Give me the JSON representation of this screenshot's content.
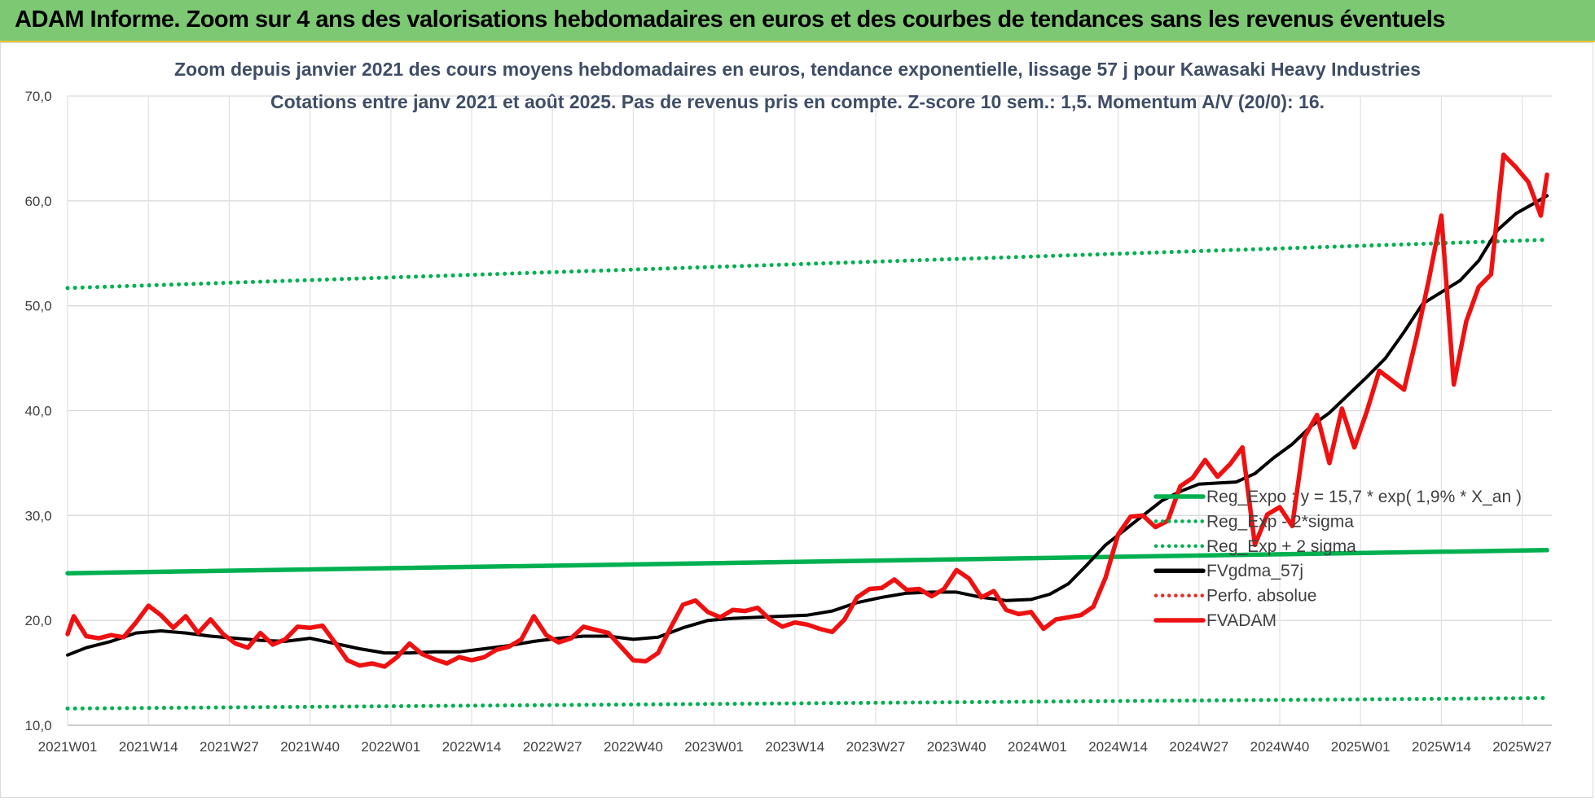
{
  "banner": {
    "title": "ADAM Informe. Zoom sur 4 ans des valorisations hebdomadaires en euros et des courbes de tendances sans les revenus éventuels",
    "color": "#7dc873"
  },
  "chart_data": {
    "type": "line",
    "title": "Zoom depuis janvier 2021 des cours moyens hebdomadaires en euros, tendance exponentielle, lissage 57 j pour Kawasaki Heavy Industries",
    "subtitle": "Cotations entre janv 2021 et août 2025.  Pas de revenus pris en compte. Z-score 10 sem.: 1,5. Momentum A/V (20/0): 16.",
    "xlabel": "",
    "ylabel": "",
    "ylim": [
      10,
      70
    ],
    "yticks": [
      "10,0",
      "20,0",
      "30,0",
      "40,0",
      "50,0",
      "60,0",
      "70,0"
    ],
    "ytick_values": [
      10,
      20,
      30,
      40,
      50,
      60,
      70
    ],
    "xlim": [
      0,
      235
    ],
    "xticks": [
      "2021W01",
      "2021W14",
      "2021W27",
      "2021W40",
      "2022W01",
      "2022W14",
      "2022W27",
      "2022W40",
      "2023W01",
      "2023W14",
      "2023W27",
      "2023W40",
      "2024W01",
      "2024W14",
      "2024W27",
      "2024W40",
      "2025W01",
      "2025W14",
      "2025W27"
    ],
    "xtick_index": [
      0,
      13,
      26,
      39,
      52,
      65,
      78,
      91,
      104,
      117,
      130,
      143,
      156,
      169,
      182,
      195,
      208,
      221,
      234
    ],
    "grid": true,
    "legend_position": "right",
    "series": [
      {
        "name": "Reg_Expo : y = 15,7 * exp( 1,9% *  X_an )",
        "color": "#00b050",
        "style": "solid",
        "x": [
          0,
          238
        ],
        "y": [
          24.5,
          26.7
        ]
      },
      {
        "name": "Reg_Exp - 2*sigma",
        "color": "#00b050",
        "style": "dotted",
        "x": [
          0,
          238
        ],
        "y": [
          11.6,
          12.6
        ]
      },
      {
        "name": "Reg_Exp + 2 sigma",
        "color": "#00b050",
        "style": "dotted",
        "x": [
          0,
          238
        ],
        "y": [
          51.7,
          56.3
        ]
      },
      {
        "name": "FVgdma_57j",
        "color": "#000000",
        "style": "solid",
        "x": [
          0,
          3,
          7,
          11,
          15,
          19,
          23,
          27,
          31,
          35,
          39,
          43,
          47,
          51,
          55,
          59,
          63,
          67,
          71,
          75,
          79,
          83,
          87,
          91,
          95,
          99,
          103,
          107,
          111,
          115,
          119,
          123,
          127,
          131,
          135,
          139,
          143,
          147,
          151,
          155,
          158,
          161,
          164,
          167,
          170,
          173,
          176,
          179,
          182,
          185,
          188,
          191,
          194,
          197,
          200,
          203,
          206,
          209,
          212,
          215,
          218,
          221,
          224,
          227,
          230,
          233,
          236,
          238
        ],
        "y": [
          16.7,
          17.4,
          18.0,
          18.8,
          19.0,
          18.8,
          18.5,
          18.3,
          18.1,
          18.0,
          18.3,
          17.8,
          17.3,
          16.9,
          16.9,
          17.0,
          17.0,
          17.3,
          17.6,
          18.0,
          18.3,
          18.5,
          18.5,
          18.2,
          18.4,
          19.3,
          20.0,
          20.2,
          20.3,
          20.4,
          20.5,
          20.9,
          21.7,
          22.2,
          22.6,
          22.7,
          22.7,
          22.2,
          21.9,
          22.0,
          22.5,
          23.5,
          25.3,
          27.2,
          28.6,
          30.0,
          31.4,
          32.3,
          33.0,
          33.1,
          33.2,
          34.0,
          35.5,
          36.8,
          38.5,
          39.8,
          41.5,
          43.2,
          45.0,
          47.5,
          50.2,
          51.3,
          52.4,
          54.3,
          57.2,
          58.8,
          59.8,
          60.5
        ]
      },
      {
        "name": "Perfo. absolue",
        "color": "#e0302a",
        "style": "dotted",
        "x": [],
        "y": []
      },
      {
        "name": "FVADAM",
        "color": "#ee1111",
        "style": "solid",
        "x": [
          0,
          1,
          3,
          5,
          7,
          9,
          11,
          13,
          15,
          17,
          19,
          21,
          23,
          25,
          27,
          29,
          31,
          33,
          35,
          37,
          39,
          41,
          43,
          45,
          47,
          49,
          51,
          53,
          55,
          57,
          59,
          61,
          63,
          65,
          67,
          69,
          71,
          73,
          75,
          77,
          79,
          81,
          83,
          85,
          87,
          89,
          91,
          93,
          95,
          97,
          99,
          101,
          103,
          105,
          107,
          109,
          111,
          113,
          115,
          117,
          119,
          121,
          123,
          125,
          127,
          129,
          131,
          133,
          135,
          137,
          139,
          141,
          143,
          145,
          147,
          149,
          151,
          153,
          155,
          157,
          159,
          161,
          163,
          165,
          167,
          169,
          171,
          173,
          175,
          177,
          179,
          181,
          183,
          185,
          187,
          189,
          191,
          193,
          195,
          197,
          199,
          201,
          203,
          205,
          207,
          209,
          211,
          213,
          215,
          217,
          219,
          221,
          223,
          225,
          227,
          229,
          231,
          233,
          235,
          237,
          238
        ],
        "y": [
          18.7,
          20.4,
          18.5,
          18.3,
          18.6,
          18.4,
          19.8,
          21.4,
          20.5,
          19.3,
          20.4,
          18.8,
          20.1,
          18.7,
          17.8,
          17.4,
          18.8,
          17.7,
          18.2,
          19.4,
          19.3,
          19.5,
          17.9,
          16.2,
          15.7,
          15.9,
          15.6,
          16.5,
          17.8,
          16.8,
          16.3,
          15.9,
          16.5,
          16.2,
          16.5,
          17.2,
          17.5,
          18.2,
          20.4,
          18.6,
          17.9,
          18.3,
          19.4,
          19.1,
          18.8,
          17.5,
          16.2,
          16.1,
          16.9,
          19.3,
          21.5,
          21.9,
          20.8,
          20.3,
          21.0,
          20.9,
          21.2,
          20.1,
          19.4,
          19.8,
          19.6,
          19.2,
          18.9,
          20.1,
          22.2,
          23.0,
          23.1,
          23.9,
          22.9,
          23.0,
          22.3,
          23.0,
          24.8,
          24.0,
          22.2,
          22.8,
          21.0,
          20.6,
          20.8,
          19.2,
          20.1,
          20.3,
          20.5,
          21.3,
          24.1,
          28.2,
          29.9,
          30.0,
          28.9,
          29.5,
          32.8,
          33.6,
          35.3,
          33.7,
          34.9,
          36.5,
          27.2,
          30.1,
          30.8,
          29.0,
          37.5,
          39.6,
          35.0,
          40.2,
          36.5,
          39.9,
          43.8,
          42.9,
          42.0,
          47.0,
          52.5,
          58.6,
          42.5,
          48.5,
          51.8,
          53.0,
          64.4,
          63.2,
          61.8,
          58.6,
          62.5
        ]
      }
    ]
  }
}
